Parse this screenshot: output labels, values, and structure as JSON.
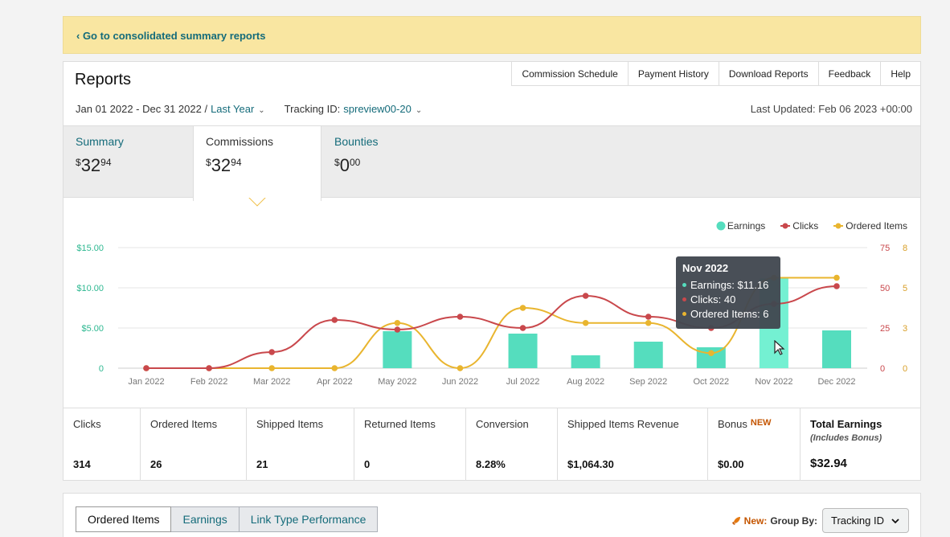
{
  "banner": {
    "link": "‹ Go to consolidated summary reports"
  },
  "header": {
    "title": "Reports",
    "nav": [
      "Commission Schedule",
      "Payment History",
      "Download Reports",
      "Feedback",
      "Help"
    ],
    "date_range": "Jan 01 2022 - Dec 31 2022 /",
    "period": "Last Year",
    "tracking_label": "Tracking ID:",
    "tracking_value": "spreview00-20",
    "last_updated": "Last Updated: Feb 06 2023 +00:00"
  },
  "summary_tabs": [
    {
      "label": "Summary",
      "dollars": "32",
      "cents": "94"
    },
    {
      "label": "Commissions",
      "dollars": "32",
      "cents": "94"
    },
    {
      "label": "Bounties",
      "dollars": "0",
      "cents": "00"
    }
  ],
  "chart_data": {
    "type": "bar",
    "categories": [
      "Jan 2022",
      "Feb 2022",
      "Mar 2022",
      "Apr 2022",
      "May 2022",
      "Jun 2022",
      "Jul 2022",
      "Aug 2022",
      "Sep 2022",
      "Oct 2022",
      "Nov 2022",
      "Dec 2022"
    ],
    "series": [
      {
        "name": "Earnings",
        "type": "bar",
        "axis": "left",
        "values": [
          0,
          0,
          0,
          0,
          4.6,
          0,
          4.3,
          1.6,
          3.3,
          2.6,
          11.16,
          4.7
        ]
      },
      {
        "name": "Clicks",
        "type": "line",
        "axis": "right-outer",
        "values": [
          0,
          0,
          10,
          30,
          24,
          32,
          25,
          45,
          32,
          25,
          40,
          51
        ]
      },
      {
        "name": "Ordered Items",
        "type": "line",
        "axis": "right-inner",
        "values": [
          0,
          0,
          0,
          0,
          3,
          0,
          4,
          3,
          3,
          1,
          6,
          6
        ]
      }
    ],
    "y_left": {
      "ticks": [
        "0",
        "$5.00",
        "$10.00",
        "$15.00"
      ],
      "range": [
        0,
        15
      ]
    },
    "y_right_outer": {
      "ticks": [
        "0",
        "25",
        "50",
        "75"
      ],
      "range": [
        0,
        75
      ]
    },
    "y_right_inner": {
      "ticks": [
        "0",
        "3",
        "5",
        "8"
      ],
      "range": [
        0,
        8
      ]
    },
    "grid": true,
    "legend": "top-right",
    "colors": {
      "earnings": "#55ddbe",
      "clicks": "#c9484c",
      "ordered_items": "#e9b52f"
    },
    "highlight_index": 10
  },
  "tooltip": {
    "title": "Nov 2022",
    "rows": [
      "Earnings: $11.16",
      "Clicks: 40",
      "Ordered Items: 6"
    ]
  },
  "metrics": [
    {
      "label": "Clicks",
      "value": "314"
    },
    {
      "label": "Ordered Items",
      "value": "26"
    },
    {
      "label": "Shipped Items",
      "value": "21"
    },
    {
      "label": "Returned Items",
      "value": "0"
    },
    {
      "label": "Conversion",
      "value": "8.28%"
    },
    {
      "label": "Shipped Items Revenue",
      "value": "$1,064.30"
    },
    {
      "label": "Bonus",
      "badge": "NEW",
      "value": "$0.00"
    },
    {
      "label": "Total Earnings",
      "sub": "(Includes Bonus)",
      "value": "$32.94"
    }
  ],
  "bottom": {
    "tabs": [
      "Ordered Items",
      "Earnings",
      "Link Type Performance"
    ],
    "group_new": "New:",
    "group_label": "Group By:",
    "group_value": "Tracking ID"
  }
}
